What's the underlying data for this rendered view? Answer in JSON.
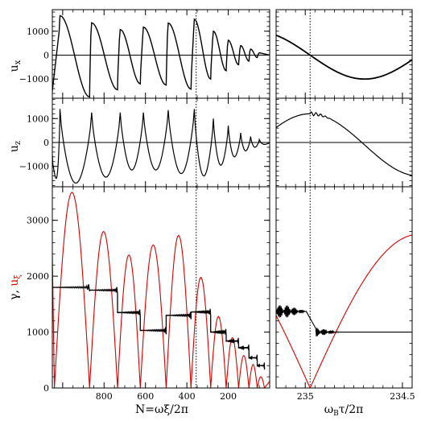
{
  "chart_data": [
    {
      "id": "ux_left",
      "type": "line",
      "ylabel": "u_x",
      "ylim": [
        -1800,
        1900
      ],
      "yticks": [
        -1000,
        0,
        1000
      ],
      "ytick_labels": [
        "−1000",
        "0",
        "1000"
      ],
      "xlim": [
        1050,
        0
      ],
      "x_inverted": true,
      "zero_line": true,
      "dotted_vline_x": 355,
      "oscillation": {
        "start_x": 1050,
        "start_y": -1500,
        "peak_x": [
          1013,
          860,
          722,
          610,
          490,
          364,
          272,
          200,
          140,
          92,
          50
        ],
        "peak_y": [
          1650,
          1350,
          1070,
          1170,
          1340,
          1500,
          1000,
          620,
          400,
          250,
          100
        ],
        "trough_x": [
          870,
          735,
          625,
          500,
          380,
          285,
          210,
          150,
          100,
          60
        ],
        "trough_y": [
          -1750,
          -1450,
          -1200,
          -1250,
          -1420,
          -1000,
          -650,
          -400,
          -250,
          -100
        ]
      },
      "series": [
        {
          "color": "#000000"
        }
      ]
    },
    {
      "id": "ux_right",
      "type": "line",
      "ylim": [
        -1800,
        1900
      ],
      "xlim": [
        235.15,
        234.45
      ],
      "x_inverted": true,
      "zero_line": true,
      "dotted_vline_x": 234.975,
      "curve": {
        "amplitude": 1000,
        "x0": 234.975,
        "period_half": 0.56
      },
      "series": [
        {
          "color": "#000000"
        }
      ]
    },
    {
      "id": "uz_left",
      "type": "line",
      "ylabel": "u_z",
      "ylim": [
        -1850,
        1850
      ],
      "yticks": [
        -1000,
        0,
        1000
      ],
      "ytick_labels": [
        "−1000",
        "0",
        "1000"
      ],
      "xlim": [
        1050,
        0
      ],
      "x_inverted": true,
      "zero_line": true,
      "dotted_vline_x": 355,
      "oscillation": {
        "cusp_x": [
          1050,
          1013,
          860,
          722,
          610,
          490,
          364,
          272,
          200,
          140,
          92,
          50,
          0
        ],
        "cusp_y": [
          -500,
          1400,
          1250,
          1250,
          1250,
          1350,
          1400,
          1000,
          700,
          400,
          250,
          120,
          0
        ],
        "trough_y": [
          -1500,
          -1700,
          -1450,
          -1150,
          -1150,
          -1300,
          -1400,
          -950,
          -600,
          -350,
          -200,
          -80
        ]
      },
      "series": [
        {
          "color": "#000000"
        }
      ]
    },
    {
      "id": "uz_right",
      "type": "line",
      "ylim": [
        -1850,
        1850
      ],
      "xlim": [
        235.15,
        234.45
      ],
      "x_inverted": true,
      "zero_line": true,
      "dotted_vline_x": 234.975,
      "curve": {
        "min_y": -1400,
        "max_y": 1200,
        "x0": 234.975,
        "period_half": 0.56
      },
      "series": [
        {
          "color": "#000000"
        }
      ]
    },
    {
      "id": "gamma_left",
      "type": "line",
      "ylabel_black": "γ, ",
      "ylabel_red": "u_ξ",
      "xlabel": "N=ωξ/2π",
      "ylim": [
        0,
        3600
      ],
      "yticks": [
        0,
        1000,
        2000,
        3000
      ],
      "ytick_labels": [
        "0",
        "1000",
        "2000",
        "3000"
      ],
      "xlim": [
        1050,
        0
      ],
      "x_inverted": true,
      "xticks": [
        800,
        600,
        400,
        200
      ],
      "xtick_labels": [
        "800",
        "600",
        "400",
        "200"
      ],
      "dotted_vline_x": 355,
      "series": [
        {
          "name_key": "gamma",
          "color": "#d40000",
          "zeros_x": [
            1040,
            870,
            735,
            625,
            500,
            380,
            285,
            210,
            150,
            100,
            60,
            25
          ],
          "arch_peaks": [
            3500,
            2800,
            2380,
            2560,
            2730,
            1980,
            1280,
            900,
            580,
            420,
            200
          ]
        },
        {
          "name_key": "u_xi",
          "color": "#000000",
          "plateau_x_bounds": [
            1050,
            870,
            735,
            625,
            500,
            380,
            285,
            210,
            150,
            100,
            60,
            25
          ],
          "plateau_y": [
            1800,
            1750,
            1350,
            1030,
            1300,
            1360,
            1000,
            840,
            720,
            540,
            400,
            200
          ]
        }
      ]
    },
    {
      "id": "gamma_right",
      "type": "line",
      "xlabel": "ω_B τ/2π",
      "ylim": [
        0,
        3600
      ],
      "xlim": [
        235.15,
        234.45
      ],
      "x_inverted": true,
      "xticks": [
        235,
        234.5
      ],
      "xtick_labels": [
        "235",
        "234.5"
      ],
      "dotted_vline_x": 234.975,
      "series": [
        {
          "name_key": "gamma",
          "color": "#d40000",
          "max_y": 2750,
          "min_y": 0,
          "x0": 234.975
        },
        {
          "name_key": "u_xi",
          "color": "#000000",
          "left_level": 1370,
          "right_level": 1000,
          "x0": 234.975
        }
      ]
    }
  ],
  "labels": {
    "ux": "u",
    "ux_sub": "x",
    "uz": "u",
    "uz_sub": "z",
    "gamma_prefix": "γ, ",
    "uxi": "u",
    "uxi_sub": "ξ",
    "xlabel_left": "N=ωξ/2π",
    "xlabel_right_omega": "ω",
    "xlabel_right_sub": "B",
    "xlabel_right_rest": "τ/2π"
  }
}
